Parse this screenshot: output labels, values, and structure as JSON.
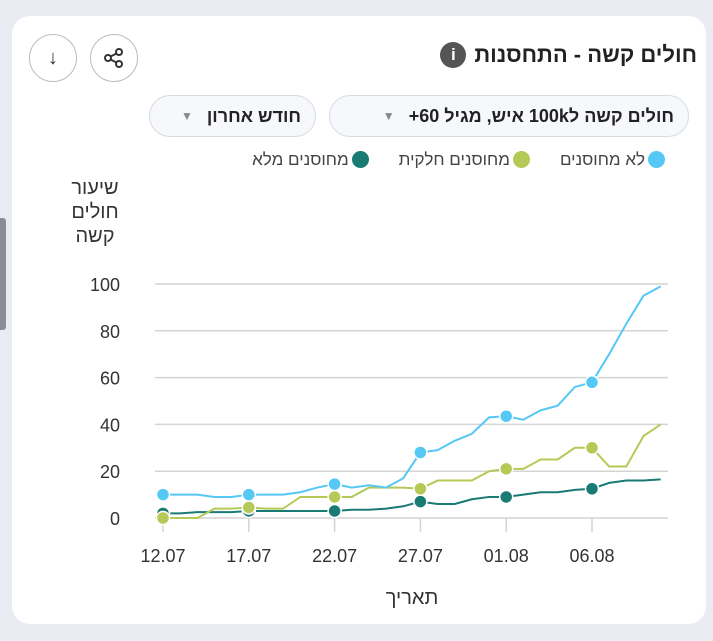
{
  "header": {
    "title": "חולים קשה - התחסנות",
    "info_icon": "info-icon",
    "share_icon": "share-icon",
    "download_icon": "download-arrow-icon"
  },
  "filters": {
    "metric": "חולים קשה ל100k איש, מגיל 60+",
    "period": "חודש אחרון"
  },
  "chart_data": {
    "type": "line",
    "xlabel": "תאריך",
    "ylabel": "שיעור חולים קשה",
    "ylim": [
      0,
      100
    ],
    "yticks": [
      0,
      20,
      40,
      60,
      80,
      100
    ],
    "xtick_labels": [
      "12.07",
      "17.07",
      "22.07",
      "27.07",
      "01.08",
      "06.08"
    ],
    "x": [
      "12.07",
      "13.07",
      "14.07",
      "15.07",
      "16.07",
      "17.07",
      "18.07",
      "19.07",
      "20.07",
      "21.07",
      "22.07",
      "23.07",
      "24.07",
      "25.07",
      "26.07",
      "27.07",
      "28.07",
      "29.07",
      "30.07",
      "31.07",
      "01.08",
      "02.08",
      "03.08",
      "04.08",
      "05.08",
      "06.08",
      "07.08",
      "08.08",
      "09.08",
      "10.08"
    ],
    "grid": true,
    "legend_position": "top",
    "series": [
      {
        "name": "לא מחוסנים",
        "color": "#55c8f5",
        "values": [
          10,
          10,
          10,
          9,
          9,
          10,
          10,
          10,
          11,
          13,
          14.5,
          13,
          14,
          13,
          17,
          28,
          29,
          33,
          36,
          43,
          43.5,
          42,
          46,
          48,
          56,
          58,
          70,
          83,
          95,
          99
        ]
      },
      {
        "name": "מחוסנים חלקית",
        "color": "#b5c957",
        "values": [
          0,
          0,
          0,
          4,
          4,
          4.5,
          4,
          4,
          9,
          9,
          9,
          9,
          13,
          13,
          13,
          12.5,
          16,
          16,
          16,
          20,
          21,
          21,
          25,
          25,
          30,
          30,
          22,
          22,
          35,
          40
        ]
      },
      {
        "name": "מחוסנים מלא",
        "color": "#1a7a74",
        "values": [
          2,
          2,
          2.5,
          2.5,
          2.5,
          3,
          3,
          3,
          3,
          3,
          3,
          3.5,
          3.5,
          4,
          5,
          7,
          6,
          6,
          8,
          9,
          9,
          10,
          11,
          11,
          12,
          12.5,
          15,
          16,
          16,
          16.5
        ]
      }
    ]
  }
}
